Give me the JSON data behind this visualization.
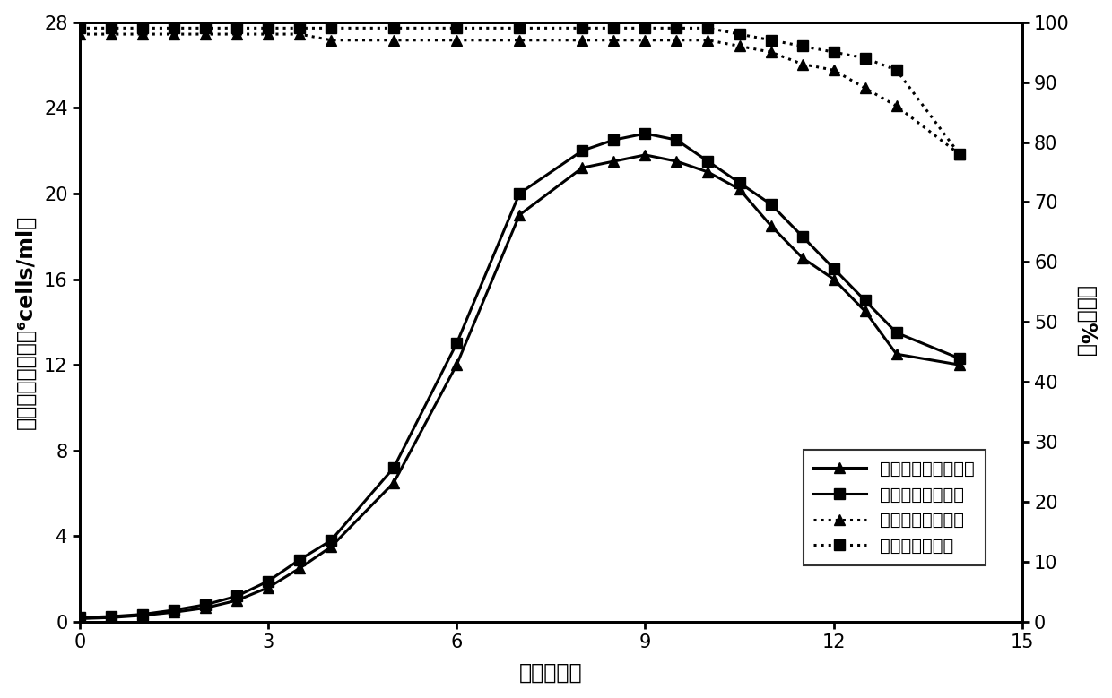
{
  "title": "",
  "xlabel": "时间（天）",
  "ylabel_left": "活细胞密度（１０⁶cells/ml）",
  "ylabel_right": "活率（%）",
  "xlim": [
    0,
    15
  ],
  "ylim_left": [
    0,
    28
  ],
  "ylim_right": [
    0,
    100
  ],
  "yticks_left": [
    0,
    4,
    8,
    12,
    16,
    20,
    24,
    28
  ],
  "yticks_right": [
    0,
    10,
    20,
    30,
    40,
    50,
    60,
    70,
    80,
    90,
    100
  ],
  "xticks": [
    0,
    3,
    6,
    9,
    12,
    15
  ],
  "control_flask_density_x": [
    0,
    0.5,
    1,
    1.5,
    2,
    2.5,
    3,
    3.5,
    4,
    5,
    6,
    7,
    8,
    8.5,
    9,
    9.5,
    10,
    10.5,
    11,
    11.5,
    12,
    12.5,
    13,
    14
  ],
  "control_flask_density_y": [
    0.15,
    0.2,
    0.3,
    0.45,
    0.65,
    1.0,
    1.6,
    2.5,
    3.5,
    6.5,
    12.0,
    19.0,
    21.2,
    21.5,
    21.8,
    21.5,
    21.0,
    20.2,
    18.5,
    17.0,
    16.0,
    14.5,
    12.5,
    12.0
  ],
  "reactor_density_x": [
    0,
    0.5,
    1,
    1.5,
    2,
    2.5,
    3,
    3.5,
    4,
    5,
    6,
    7,
    8,
    8.5,
    9,
    9.5,
    10,
    10.5,
    11,
    11.5,
    12,
    12.5,
    13,
    14
  ],
  "reactor_density_y": [
    0.2,
    0.25,
    0.35,
    0.55,
    0.8,
    1.2,
    1.9,
    2.9,
    3.8,
    7.2,
    13.0,
    20.0,
    22.0,
    22.5,
    22.8,
    22.5,
    21.5,
    20.5,
    19.5,
    18.0,
    16.5,
    15.0,
    13.5,
    12.3
  ],
  "control_flask_viability_x": [
    0,
    0.5,
    1,
    1.5,
    2,
    2.5,
    3,
    3.5,
    4,
    5,
    6,
    7,
    8,
    8.5,
    9,
    9.5,
    10,
    10.5,
    11,
    11.5,
    12,
    12.5,
    13,
    14
  ],
  "control_flask_viability_y": [
    98,
    98,
    98,
    98,
    98,
    98,
    98,
    98,
    97,
    97,
    97,
    97,
    97,
    97,
    97,
    97,
    97,
    96,
    95,
    93,
    92,
    89,
    86,
    78
  ],
  "reactor_viability_x": [
    0,
    0.5,
    1,
    1.5,
    2,
    2.5,
    3,
    3.5,
    4,
    5,
    6,
    7,
    8,
    8.5,
    9,
    9.5,
    10,
    10.5,
    11,
    11.5,
    12,
    12.5,
    13,
    14
  ],
  "reactor_viability_y": [
    99,
    99,
    99,
    99,
    99,
    99,
    99,
    99,
    99,
    99,
    99,
    99,
    99,
    99,
    99,
    99,
    99,
    98,
    97,
    96,
    95,
    94,
    92,
    78
  ],
  "legend_labels": [
    "对照摇瓶活细胞密度",
    "反应器活细胞密度",
    "对照摇瓶细胞活率",
    "反应器细胞活率"
  ],
  "line_color": "#000000",
  "background_color": "#ffffff",
  "fontsize_labels": 17,
  "fontsize_ticks": 15,
  "fontsize_legend": 14
}
